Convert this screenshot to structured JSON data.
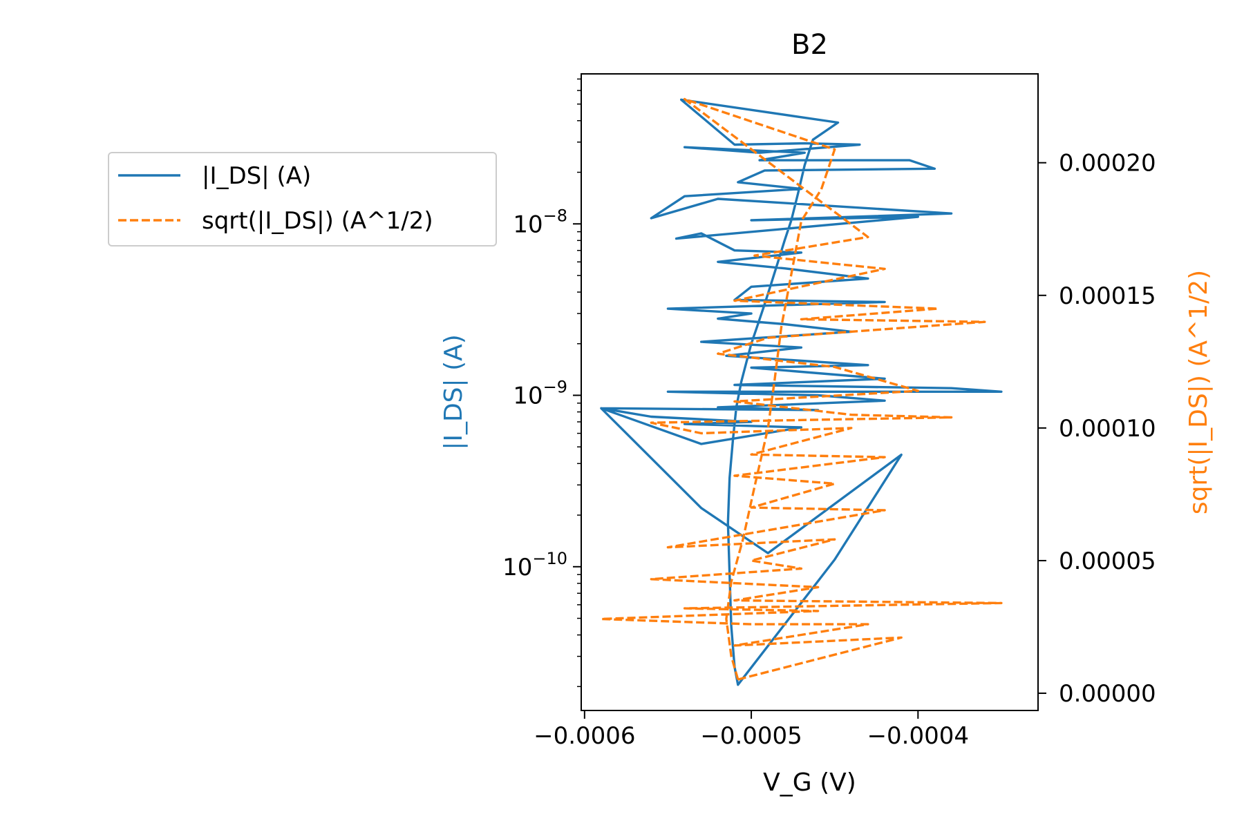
{
  "chart_data": {
    "type": "line",
    "title": "B2",
    "xlabel": "V_G (V)",
    "ylabel_left": "|I_DS| (A)",
    "ylabel_right": "sqrt(|I_DS|) (A^1/2)",
    "xlim": [
      -0.000602,
      -0.000328
    ],
    "x_ticks": [
      -0.0006,
      -0.0005,
      -0.0004
    ],
    "x_tick_labels": [
      "−0.0006",
      "−0.0005",
      "−0.0004"
    ],
    "left_axis": {
      "scale": "log",
      "ylim": [
        1.45e-11,
        7.5e-08
      ],
      "ticks": [
        1e-10,
        1e-09,
        1e-08
      ],
      "tick_base": "10",
      "tick_exponents": [
        "−10",
        "−9",
        "−8"
      ]
    },
    "right_axis": {
      "scale": "linear",
      "ylim": [
        -6.5e-06,
        0.0002335
      ],
      "ticks": [
        0,
        5e-05,
        0.0001,
        0.00015,
        0.0002
      ],
      "tick_labels": [
        "0.00000",
        "0.00005",
        "0.00010",
        "0.00015",
        "0.00020"
      ]
    },
    "grid": false,
    "legend_position": "outside-upper-left",
    "colors": {
      "series_1": "#1f77b4",
      "series_2": "#ff7f0e"
    },
    "series": [
      {
        "name": "|I_DS| (A)",
        "axis": "left",
        "style": "solid",
        "points": [
          [
            -0.000508,
            2.05e-11
          ],
          [
            -0.00051,
            2.6e-11
          ],
          [
            -0.000512,
            4.5e-11
          ],
          [
            -0.000513,
            9e-11
          ],
          [
            -0.000514,
            1.8e-10
          ],
          [
            -0.000513,
            3.3e-10
          ],
          [
            -0.000511,
            5.5e-10
          ],
          [
            -0.000509,
            8.5e-10
          ],
          [
            -0.000506,
            1.2e-09
          ],
          [
            -0.000503,
            1.55e-09
          ],
          [
            -0.0005,
            2e-09
          ],
          [
            -0.000496,
            2.6e-09
          ],
          [
            -0.000492,
            3.4e-09
          ],
          [
            -0.000488,
            4.5e-09
          ],
          [
            -0.000484,
            6e-09
          ],
          [
            -0.00048,
            8e-09
          ],
          [
            -0.000476,
            1.05e-08
          ],
          [
            -0.000472,
            1.5e-08
          ],
          [
            -0.000468,
            2.2e-08
          ],
          [
            -0.000463,
            3.1e-08
          ],
          [
            -0.000448,
            3.9e-08
          ],
          [
            -0.000542,
            5.3e-08
          ],
          [
            -0.00051,
            2.9e-08
          ],
          [
            -0.000468,
            2.95e-08
          ],
          [
            -0.000435,
            2.9e-08
          ],
          [
            -0.000495,
            2.6e-08
          ],
          [
            -0.00054,
            2.8e-08
          ],
          [
            -0.000468,
            2.6e-08
          ],
          [
            -0.000495,
            2.35e-08
          ],
          [
            -0.000405,
            2.35e-08
          ],
          [
            -0.00039,
            2.1e-08
          ],
          [
            -0.000492,
            2.05e-08
          ],
          [
            -0.000508,
            1.75e-08
          ],
          [
            -0.00047,
            1.6e-08
          ],
          [
            -0.00054,
            1.45e-08
          ],
          [
            -0.00056,
            1.08e-08
          ],
          [
            -0.00052,
            1.4e-08
          ],
          [
            -0.00038,
            1.15e-08
          ],
          [
            -0.0005,
            1.05e-08
          ],
          [
            -0.0004,
            1.1e-08
          ],
          [
            -0.000545,
            8.2e-09
          ],
          [
            -0.00053,
            8.8e-09
          ],
          [
            -0.00051,
            7e-09
          ],
          [
            -0.00047,
            6.8e-09
          ],
          [
            -0.00052,
            6e-09
          ],
          [
            -0.00048,
            5.5e-09
          ],
          [
            -0.00043,
            4.8e-09
          ],
          [
            -0.0005,
            4.3e-09
          ],
          [
            -0.00051,
            3.6e-09
          ],
          [
            -0.00042,
            3.5e-09
          ],
          [
            -0.00055,
            3.2e-09
          ],
          [
            -0.0005,
            3e-09
          ],
          [
            -0.00052,
            2.8e-09
          ],
          [
            -0.00048,
            2.6e-09
          ],
          [
            -0.00044,
            2.35e-09
          ],
          [
            -0.00053,
            2.05e-09
          ],
          [
            -0.00047,
            1.9e-09
          ],
          [
            -0.000515,
            1.7e-09
          ],
          [
            -0.00043,
            1.5e-09
          ],
          [
            -0.0005,
            1.45e-09
          ],
          [
            -0.00042,
            1.25e-09
          ],
          [
            -0.00051,
            1.15e-09
          ],
          [
            -0.00038,
            1.1e-09
          ],
          [
            -0.00035,
            1.05e-09
          ],
          [
            -0.00055,
            1.05e-09
          ],
          [
            -0.00046,
            1e-09
          ],
          [
            -0.00042,
            9.3e-10
          ],
          [
            -0.00052,
            8.5e-10
          ],
          [
            -0.00046,
            8.2e-10
          ],
          [
            -0.00059,
            8.4e-10
          ],
          [
            -0.00056,
            7.5e-10
          ],
          [
            -0.0005,
            7e-10
          ],
          [
            -0.00054,
            6.8e-10
          ],
          [
            -0.00047,
            6.5e-10
          ],
          [
            -0.00053,
            5.2e-10
          ],
          [
            -0.00059,
            8.4e-10
          ],
          [
            -0.00053,
            2.2e-10
          ],
          [
            -0.00049,
            1.2e-10
          ],
          [
            -0.00041,
            4.5e-10
          ],
          [
            -0.00045,
            1.1e-10
          ],
          [
            -0.000508,
            2.05e-11
          ]
        ]
      },
      {
        "name": "sqrt(|I_DS|) (A^1/2)",
        "axis": "right",
        "style": "dashed",
        "points": [
          [
            -0.000508,
            5.2e-06
          ],
          [
            -0.000512,
            1.4e-05
          ],
          [
            -0.000515,
            2.8e-05
          ],
          [
            -0.000512,
            4.2e-05
          ],
          [
            -0.000505,
            5.8e-05
          ],
          [
            -0.000498,
            7.8e-05
          ],
          [
            -0.00049,
            0.0001
          ],
          [
            -0.000486,
            0.000118
          ],
          [
            -0.000482,
            0.000138
          ],
          [
            -0.000476,
            0.000158
          ],
          [
            -0.00047,
            0.000178
          ],
          [
            -0.000458,
            0.00019
          ],
          [
            -0.00045,
            0.000205
          ],
          [
            -0.00054,
            0.000224
          ],
          [
            -0.00043,
            0.000172
          ],
          [
            -0.000498,
            0.000165
          ],
          [
            -0.00042,
            0.00016
          ],
          [
            -0.00051,
            0.000148
          ],
          [
            -0.000388,
            0.000145
          ],
          [
            -0.00047,
            0.000141
          ],
          [
            -0.00036,
            0.00014
          ],
          [
            -0.00049,
            0.000134
          ],
          [
            -0.00052,
            0.000128
          ],
          [
            -0.00045,
            0.000123
          ],
          [
            -0.0004,
            0.000114
          ],
          [
            -0.00051,
            0.00011
          ],
          [
            -0.00044,
            0.000105
          ],
          [
            -0.00038,
            0.000104
          ],
          [
            -0.00056,
            0.000102
          ],
          [
            -0.00053,
            9.8e-05
          ],
          [
            -0.00044,
            0.0001
          ],
          [
            -0.0005,
            9e-05
          ],
          [
            -0.00042,
            8.9e-05
          ],
          [
            -0.00051,
            8.2e-05
          ],
          [
            -0.00045,
            7.9e-05
          ],
          [
            -0.0005,
            7e-05
          ],
          [
            -0.00042,
            6.9e-05
          ],
          [
            -0.00055,
            5.5e-05
          ],
          [
            -0.00045,
            5.8e-05
          ],
          [
            -0.0005,
            5e-05
          ],
          [
            -0.00047,
            4.7e-05
          ],
          [
            -0.00056,
            4.3e-05
          ],
          [
            -0.00046,
            4e-05
          ],
          [
            -0.00051,
            3.5e-05
          ],
          [
            -0.00035,
            3.4e-05
          ],
          [
            -0.00054,
            3.2e-05
          ],
          [
            -0.00046,
            3.1e-05
          ],
          [
            -0.00059,
            2.8e-05
          ],
          [
            -0.0005,
            2.6e-05
          ],
          [
            -0.00043,
            2.6e-05
          ],
          [
            -0.00047,
            2.2e-05
          ],
          [
            -0.00051,
            1.8e-05
          ],
          [
            -0.00041,
            2.1e-05
          ],
          [
            -0.000508,
            5.2e-06
          ]
        ]
      }
    ]
  },
  "legend": {
    "items": [
      {
        "label": "|I_DS| (A)",
        "color": "#1f77b4",
        "style": "solid"
      },
      {
        "label": "sqrt(|I_DS|) (A^1/2)",
        "color": "#ff7f0e",
        "style": "dashed"
      }
    ]
  }
}
